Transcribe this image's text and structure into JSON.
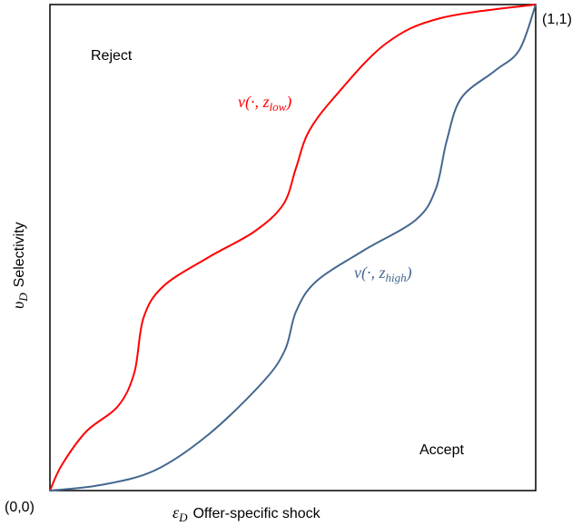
{
  "corners": {
    "top_right": "(1,1)",
    "bottom_left": "(0,0)"
  },
  "regions": {
    "upper": "Reject",
    "lower": "Accept"
  },
  "curves": [
    {
      "prefix": "v(·, z",
      "subscript": "low",
      "suffix": ")"
    },
    {
      "prefix": "v(·, z",
      "subscript": "high",
      "suffix": ")"
    }
  ],
  "x_axis": {
    "symbol": "ε",
    "symbol_subscript": "D",
    "label": "Offer-specific shock"
  },
  "y_axis": {
    "symbol": "υ",
    "symbol_subscript": "D",
    "label": "Selectivity"
  }
}
